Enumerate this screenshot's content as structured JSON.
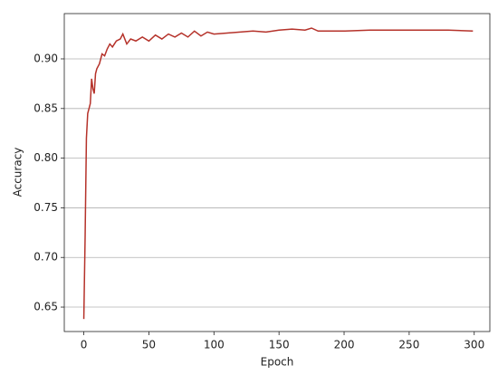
{
  "chart_data": {
    "type": "line",
    "x_label": "Epoch",
    "y_label": "Accuracy",
    "x": [
      0,
      1,
      2,
      3,
      4,
      5,
      6,
      7,
      8,
      9,
      10,
      12,
      14,
      16,
      18,
      20,
      22,
      25,
      28,
      30,
      33,
      36,
      40,
      45,
      50,
      55,
      60,
      65,
      70,
      75,
      80,
      85,
      90,
      95,
      100,
      110,
      120,
      130,
      140,
      150,
      160,
      170,
      175,
      180,
      190,
      200,
      220,
      240,
      260,
      280,
      299
    ],
    "series": [
      {
        "name": "Accuracy",
        "color": "#b5322a",
        "values": [
          0.638,
          0.72,
          0.82,
          0.845,
          0.85,
          0.855,
          0.88,
          0.87,
          0.865,
          0.885,
          0.89,
          0.895,
          0.905,
          0.903,
          0.91,
          0.915,
          0.912,
          0.918,
          0.92,
          0.925,
          0.915,
          0.92,
          0.918,
          0.922,
          0.918,
          0.924,
          0.92,
          0.925,
          0.922,
          0.926,
          0.922,
          0.928,
          0.923,
          0.927,
          0.925,
          0.926,
          0.927,
          0.928,
          0.927,
          0.929,
          0.93,
          0.929,
          0.931,
          0.928,
          0.928,
          0.928,
          0.929,
          0.929,
          0.929,
          0.929,
          0.928
        ]
      }
    ],
    "xlim": [
      -15,
      312
    ],
    "ylim": [
      0.6254,
      0.9456
    ],
    "xticks": [
      0,
      50,
      100,
      150,
      200,
      250,
      300
    ],
    "yticks": [
      {
        "value": 0.65,
        "label": "0.65"
      },
      {
        "value": 0.7,
        "label": "0.70"
      },
      {
        "value": 0.75,
        "label": "0.75"
      },
      {
        "value": 0.8,
        "label": "0.80"
      },
      {
        "value": 0.85,
        "label": "0.85"
      },
      {
        "value": 0.9,
        "label": "0.90"
      }
    ],
    "grid": "y"
  }
}
